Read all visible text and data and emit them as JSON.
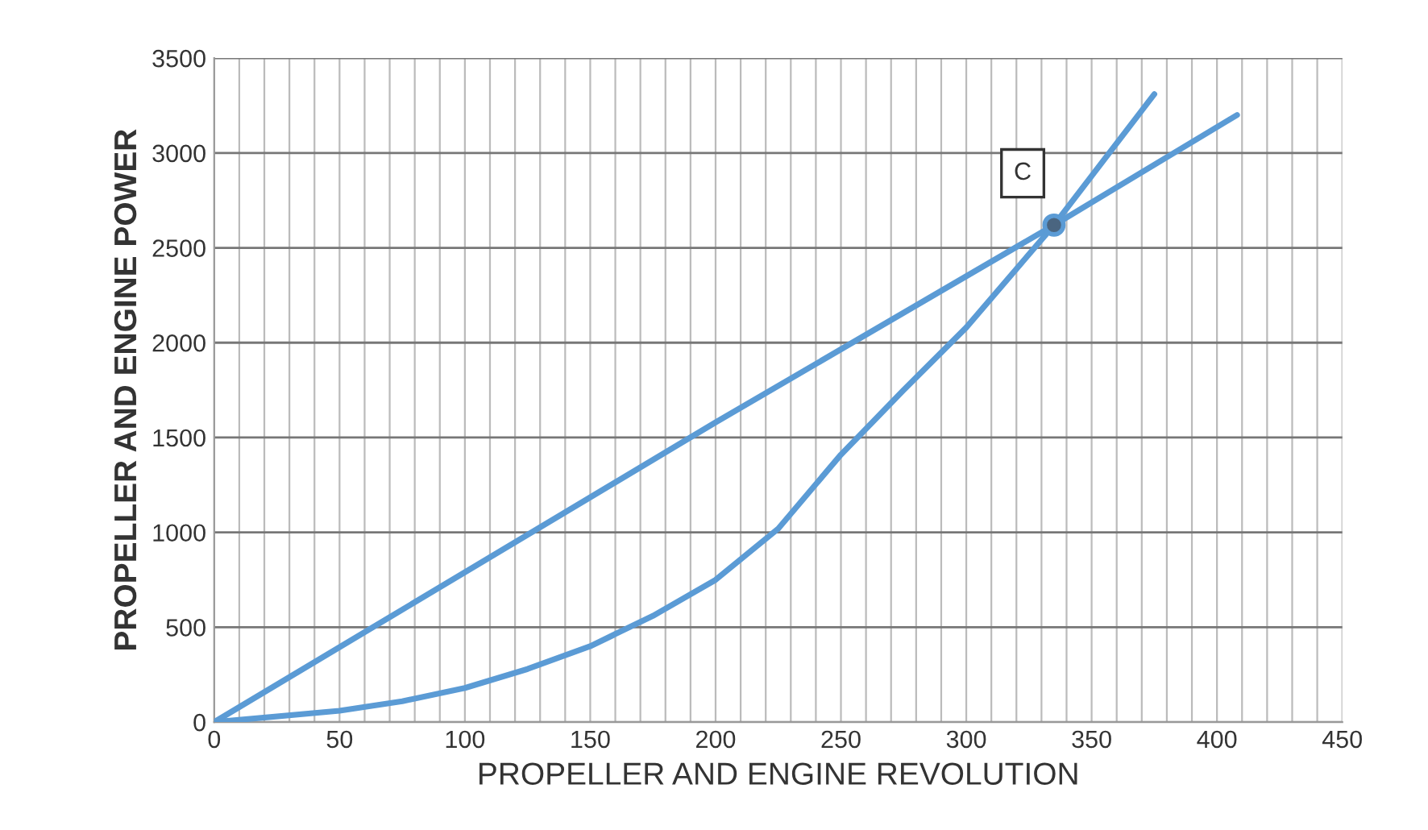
{
  "chart_data": {
    "type": "line",
    "xlabel": "PROPELLER AND ENGINE REVOLUTION",
    "ylabel": "PROPELLER AND ENGINE POWER",
    "series": [
      {
        "color": "#5b9bd5",
        "x": [
          0,
          100,
          200,
          335,
          408
        ],
        "values": [
          0,
          790,
          1580,
          2620,
          3200
        ]
      },
      {
        "color": "#5b9bd5",
        "x": [
          0,
          50,
          75,
          100,
          125,
          150,
          175,
          200,
          225,
          250,
          275,
          300,
          335,
          375
        ],
        "values": [
          0,
          60,
          110,
          180,
          280,
          400,
          560,
          750,
          1020,
          1410,
          1750,
          2080,
          2620,
          3310
        ]
      },
      {
        "type": "scatter",
        "color": "#4a6580",
        "x": [
          335
        ],
        "values": [
          2620
        ]
      }
    ],
    "annotations": [
      {
        "text": "C",
        "x": 335,
        "y": 2620
      }
    ],
    "xlim": [
      0,
      450
    ],
    "ylim": [
      0,
      3500
    ],
    "xticks": [
      0,
      {
        "value": 10,
        "label": null
      },
      {
        "value": 20,
        "label": null
      },
      {
        "value": 30,
        "label": null
      },
      {
        "value": 40,
        "label": null
      },
      50,
      {
        "value": 60,
        "label": null
      },
      {
        "value": 70,
        "label": null
      },
      {
        "value": 80,
        "label": null
      },
      {
        "value": 90,
        "label": null
      },
      100,
      {
        "value": 110,
        "label": null
      },
      {
        "value": 120,
        "label": null
      },
      {
        "value": 130,
        "label": null
      },
      {
        "value": 140,
        "label": null
      },
      150,
      {
        "value": 160,
        "label": null
      },
      {
        "value": 170,
        "label": null
      },
      {
        "value": 180,
        "label": null
      },
      {
        "value": 190,
        "label": null
      },
      200,
      {
        "value": 210,
        "label": null
      },
      {
        "value": 220,
        "label": null
      },
      {
        "value": 230,
        "label": null
      },
      {
        "value": 240,
        "label": null
      },
      250,
      {
        "value": 260,
        "label": null
      },
      {
        "value": 270,
        "label": null
      },
      {
        "value": 280,
        "label": null
      },
      {
        "value": 290,
        "label": null
      },
      300,
      {
        "value": 310,
        "label": null
      },
      {
        "value": 320,
        "label": null
      },
      {
        "value": 330,
        "label": null
      },
      {
        "value": 340,
        "label": null
      },
      350,
      {
        "value": 360,
        "label": null
      },
      {
        "value": 370,
        "label": null
      },
      {
        "value": 380,
        "label": null
      },
      {
        "value": 390,
        "label": null
      },
      400,
      {
        "value": 410,
        "label": null
      },
      {
        "value": 420,
        "label": null
      },
      {
        "value": 430,
        "label": null
      },
      {
        "value": 440,
        "label": null
      },
      450
    ],
    "yticks": [
      0,
      500,
      1000,
      1500,
      2000,
      2500,
      3000,
      3500
    ],
    "grid": true,
    "legend": false
  }
}
